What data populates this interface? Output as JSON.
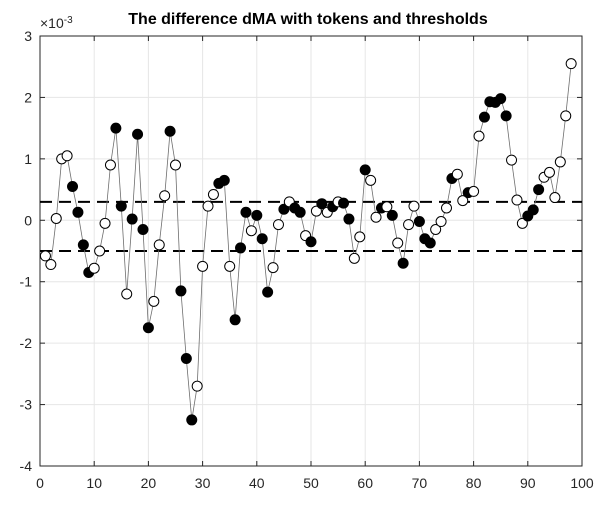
{
  "chart_data": {
    "type": "scatter",
    "title": "The difference dMA with tokens and thresholds",
    "xlabel": "",
    "ylabel": "",
    "y_exponent_label": "×10",
    "y_exponent": "-3",
    "xlim": [
      0,
      100
    ],
    "ylim": [
      -4,
      3
    ],
    "x_ticks": [
      0,
      10,
      20,
      30,
      40,
      50,
      60,
      70,
      80,
      90,
      100
    ],
    "y_ticks": [
      -4,
      -3,
      -2,
      -1,
      0,
      1,
      2,
      3
    ],
    "grid": true,
    "thresholds": [
      0.3,
      -0.5
    ],
    "series": [
      {
        "name": "dMA",
        "x": [
          1,
          2,
          3,
          4,
          5,
          6,
          7,
          8,
          9,
          10,
          11,
          12,
          13,
          14,
          15,
          16,
          17,
          18,
          19,
          20,
          21,
          22,
          23,
          24,
          25,
          26,
          27,
          28,
          29,
          30,
          31,
          32,
          33,
          34,
          35,
          36,
          37,
          38,
          39,
          40,
          41,
          42,
          43,
          44,
          45,
          46,
          47,
          48,
          49,
          50,
          51,
          52,
          53,
          54,
          55,
          56,
          57,
          58,
          59,
          60,
          61,
          62,
          63,
          64,
          65,
          66,
          67,
          68,
          69,
          70,
          71,
          72,
          73,
          74,
          75,
          76,
          77,
          78,
          79,
          80,
          81,
          82,
          83,
          84,
          85,
          86,
          87,
          88,
          89,
          90,
          91,
          92,
          93,
          94,
          95,
          96,
          97,
          98
        ],
        "values": [
          -0.58,
          -0.72,
          0.03,
          1.0,
          1.05,
          0.55,
          0.13,
          -0.4,
          -0.85,
          -0.78,
          -0.5,
          -0.05,
          0.9,
          1.5,
          0.23,
          -1.2,
          0.02,
          1.4,
          -0.15,
          -1.75,
          -1.32,
          -0.4,
          0.4,
          1.45,
          0.9,
          -1.15,
          -2.25,
          -3.25,
          -2.7,
          -0.75,
          0.23,
          0.42,
          0.6,
          0.65,
          -0.75,
          -1.62,
          -0.45,
          0.13,
          -0.17,
          0.08,
          -0.3,
          -1.17,
          -0.77,
          -0.07,
          0.18,
          0.3,
          0.2,
          0.13,
          -0.25,
          -0.35,
          0.15,
          0.27,
          0.13,
          0.22,
          0.3,
          0.28,
          0.02,
          -0.62,
          -0.27,
          0.82,
          0.65,
          0.05,
          0.2,
          0.22,
          0.08,
          -0.37,
          -0.7,
          -0.07,
          0.23,
          -0.02,
          -0.3,
          -0.37,
          -0.15,
          -0.02,
          0.2,
          0.68,
          0.75,
          0.32,
          0.45,
          0.47,
          1.37,
          1.68,
          1.93,
          1.92,
          1.98,
          1.7,
          0.98,
          0.33,
          -0.05,
          0.07,
          0.17,
          0.5,
          0.7,
          0.78,
          0.37,
          0.95,
          1.7,
          2.55
        ],
        "token": [
          0,
          0,
          0,
          0,
          0,
          1,
          1,
          1,
          1,
          0,
          0,
          0,
          0,
          1,
          1,
          0,
          1,
          1,
          1,
          1,
          0,
          0,
          0,
          1,
          0,
          1,
          1,
          1,
          0,
          0,
          0,
          0,
          1,
          1,
          0,
          1,
          1,
          1,
          0,
          1,
          1,
          1,
          0,
          0,
          1,
          0,
          1,
          1,
          0,
          1,
          0,
          1,
          0,
          1,
          0,
          1,
          1,
          0,
          0,
          1,
          0,
          0,
          1,
          0,
          1,
          0,
          1,
          0,
          0,
          1,
          1,
          1,
          0,
          0,
          0,
          1,
          0,
          0,
          1,
          0,
          0,
          1,
          1,
          1,
          1,
          1,
          0,
          0,
          0,
          1,
          1,
          1,
          0,
          0,
          0,
          0,
          0,
          0
        ]
      }
    ]
  }
}
